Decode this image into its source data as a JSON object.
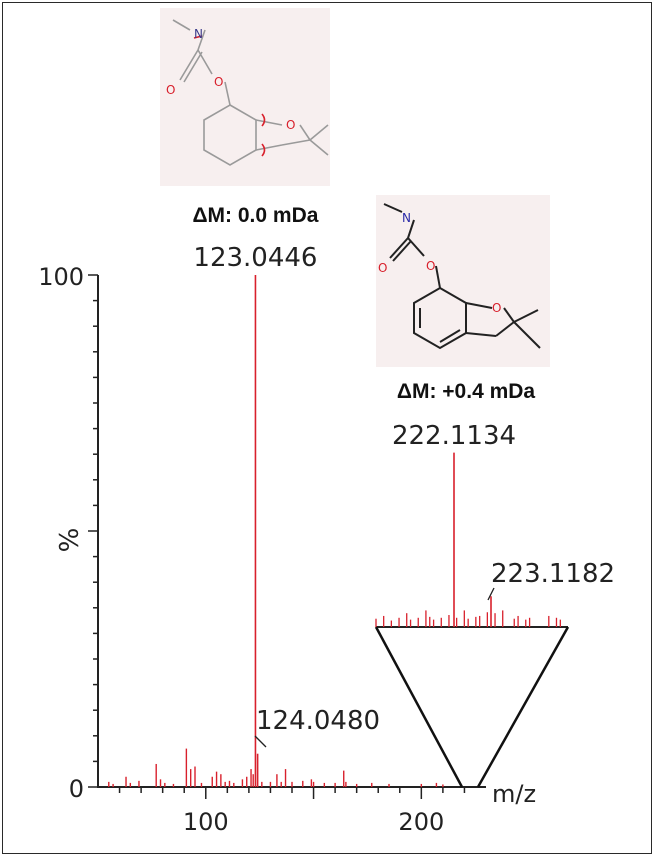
{
  "chart_data": {
    "type": "bar",
    "subtype": "mass-spectrum",
    "xlabel": "m/z",
    "ylabel": "%",
    "xlim": [
      50,
      230
    ],
    "ylim": [
      0,
      100
    ],
    "xticks": [
      100,
      200
    ],
    "yticks": [
      0,
      100
    ],
    "line_color": "#d8202c",
    "main_peaks": [
      {
        "mz": 123.0446,
        "intensity": 100,
        "label": "123.0446",
        "delta": "ΔM: 0.0 mDa"
      },
      {
        "mz": 124.048,
        "intensity": 6.5,
        "label": "124.0480"
      },
      {
        "mz": 222.1134,
        "intensity": 65.5,
        "label": "222.1134",
        "delta": "ΔM: +0.4 mDa"
      },
      {
        "mz": 223.1182,
        "intensity": 6.0,
        "label": "223.1182"
      }
    ],
    "minor_peaks": [
      [
        55,
        1.0
      ],
      [
        57,
        0.6
      ],
      [
        63,
        2.0
      ],
      [
        65,
        0.8
      ],
      [
        69,
        1.2
      ],
      [
        77,
        4.5
      ],
      [
        79,
        1.5
      ],
      [
        81,
        0.8
      ],
      [
        85,
        0.6
      ],
      [
        91,
        7.5
      ],
      [
        93,
        3.5
      ],
      [
        95,
        4.0
      ],
      [
        98,
        0.8
      ],
      [
        103,
        2.0
      ],
      [
        105,
        3.0
      ],
      [
        107,
        2.5
      ],
      [
        109,
        1.0
      ],
      [
        111,
        1.2
      ],
      [
        113,
        0.8
      ],
      [
        117,
        1.5
      ],
      [
        119,
        2.0
      ],
      [
        121,
        3.5
      ],
      [
        122,
        2.5
      ],
      [
        126,
        1.0
      ],
      [
        130,
        1.0
      ],
      [
        133,
        2.5
      ],
      [
        135,
        1.0
      ],
      [
        137,
        3.5
      ],
      [
        140,
        1.0
      ],
      [
        145,
        1.2
      ],
      [
        149,
        1.5
      ],
      [
        150,
        1.0
      ],
      [
        155,
        0.8
      ],
      [
        160,
        0.8
      ],
      [
        164,
        3.2
      ],
      [
        165,
        1.0
      ],
      [
        170,
        0.6
      ],
      [
        177,
        0.8
      ],
      [
        185,
        0.6
      ],
      [
        200,
        0.6
      ],
      [
        207,
        0.8
      ],
      [
        210,
        0.5
      ]
    ],
    "inset": {
      "xlim": [
        180,
        230
      ],
      "peaks": [
        [
          180,
          0.9
        ],
        [
          182,
          1.2
        ],
        [
          184,
          0.7
        ],
        [
          186,
          1.0
        ],
        [
          188,
          1.5
        ],
        [
          189,
          0.8
        ],
        [
          191,
          1.0
        ],
        [
          193,
          1.8
        ],
        [
          194,
          1.1
        ],
        [
          195,
          0.8
        ],
        [
          197,
          1.0
        ],
        [
          199,
          1.3
        ],
        [
          201,
          1.0
        ],
        [
          203,
          1.8
        ],
        [
          204,
          0.9
        ],
        [
          206,
          1.1
        ],
        [
          207,
          1.2
        ],
        [
          209,
          1.6
        ],
        [
          211,
          1.5
        ],
        [
          213,
          1.8
        ],
        [
          216,
          0.9
        ],
        [
          217,
          1.2
        ],
        [
          219,
          0.8
        ],
        [
          220,
          1.0
        ],
        [
          225,
          1.2
        ],
        [
          227,
          1.0
        ],
        [
          228,
          0.8
        ]
      ]
    }
  },
  "structures": [
    {
      "atoms": [
        "N",
        "O",
        "O",
        "O"
      ]
    },
    {
      "atoms": [
        "N",
        "O",
        "O",
        "O"
      ]
    }
  ]
}
